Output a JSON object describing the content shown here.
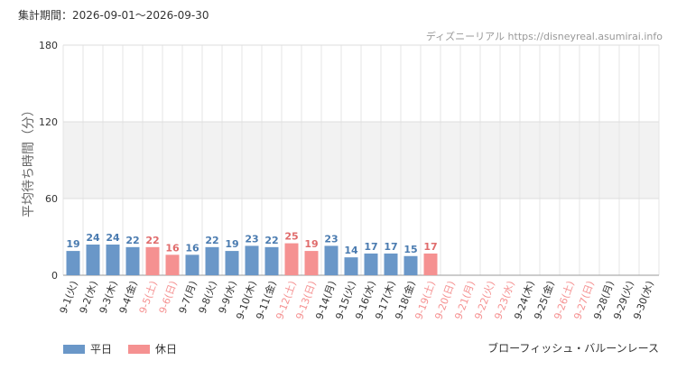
{
  "header": {
    "period_label": "集計期間：2026-09-01～2026-09-30",
    "source": "ディズニーリアル https://disneyreal.asumirai.info"
  },
  "footer": {
    "attraction": "ブローフィッシュ・バルーンレース"
  },
  "legend": [
    {
      "label": "平日",
      "color": "#6a97c8"
    },
    {
      "label": "休日",
      "color": "#f59191"
    }
  ],
  "chart_data": {
    "type": "bar",
    "ylabel": "平均待ち時間（分）",
    "ylim": [
      0,
      180
    ],
    "yticks": [
      0,
      60,
      120,
      180
    ],
    "grid": true,
    "colors": {
      "weekday": "#6a97c8",
      "holiday": "#f59191",
      "weekday_text": "#4a7bb0",
      "holiday_text": "#e06b6b"
    },
    "categories": [
      "9-1(火)",
      "9-2(水)",
      "9-3(木)",
      "9-4(金)",
      "9-5(土)",
      "9-6(日)",
      "9-7(月)",
      "9-8(火)",
      "9-9(水)",
      "9-10(木)",
      "9-11(金)",
      "9-12(土)",
      "9-13(日)",
      "9-14(月)",
      "9-15(火)",
      "9-16(水)",
      "9-17(木)",
      "9-18(金)",
      "9-19(土)",
      "9-20(日)",
      "9-21(月)",
      "9-22(火)",
      "9-23(水)",
      "9-24(木)",
      "9-25(金)",
      "9-26(土)",
      "9-27(日)",
      "9-28(月)",
      "9-29(火)",
      "9-30(水)"
    ],
    "values": [
      19,
      24,
      24,
      22,
      22,
      16,
      16,
      22,
      19,
      23,
      22,
      25,
      19,
      23,
      14,
      17,
      17,
      15,
      17,
      null,
      null,
      null,
      null,
      null,
      null,
      null,
      null,
      null,
      null,
      null
    ],
    "holiday": [
      false,
      false,
      false,
      false,
      true,
      true,
      false,
      false,
      false,
      false,
      false,
      true,
      true,
      false,
      false,
      false,
      false,
      false,
      true,
      true,
      true,
      true,
      true,
      false,
      false,
      true,
      true,
      false,
      false,
      false
    ]
  }
}
